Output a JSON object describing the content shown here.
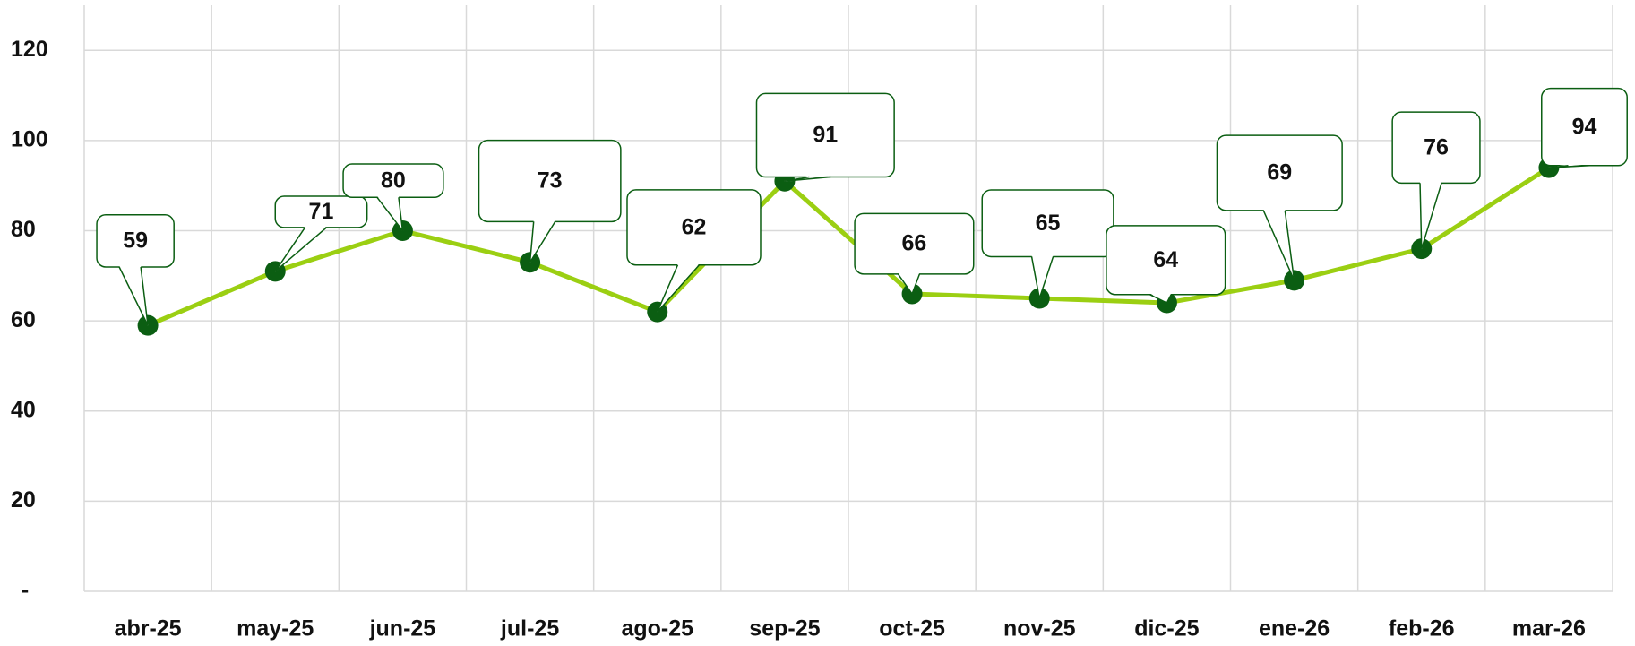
{
  "chart_data": {
    "type": "line",
    "categories": [
      "abr-25",
      "may-25",
      "jun-25",
      "jul-25",
      "ago-25",
      "sep-25",
      "oct-25",
      "nov-25",
      "dic-25",
      "ene-26",
      "feb-26",
      "mar-26"
    ],
    "series": [
      {
        "color": "#9bcf12",
        "marker_color": "#0b5e12",
        "values": [
          59,
          71,
          80,
          73,
          62,
          91,
          66,
          65,
          64,
          69,
          76,
          94
        ]
      }
    ],
    "ylim": [
      0,
      130
    ],
    "yticks": [
      {
        "value": 0,
        "label": "-"
      },
      20,
      40,
      60,
      80,
      100,
      120
    ],
    "grid": true
  }
}
